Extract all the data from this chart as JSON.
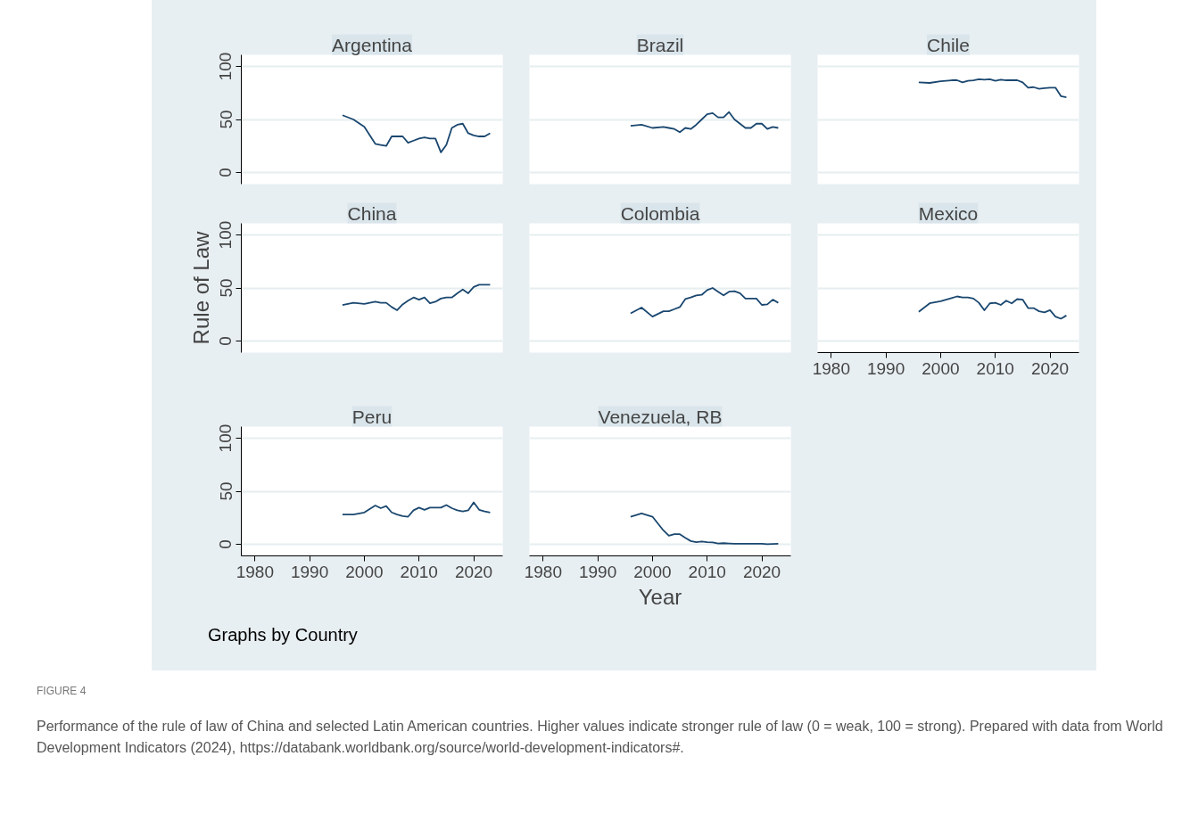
{
  "chart_data": [
    {
      "type": "line",
      "title": "Argentina",
      "x": [
        1996,
        1998,
        2000,
        2002,
        2003,
        2004,
        2005,
        2006,
        2007,
        2008,
        2009,
        2010,
        2011,
        2012,
        2013,
        2014,
        2015,
        2016,
        2017,
        2018,
        2019,
        2020,
        2021,
        2022,
        2023
      ],
      "series": [
        {
          "color": "#1a476f",
          "values": [
            54,
            50,
            43,
            27,
            26,
            25,
            34,
            34,
            34,
            28,
            30,
            32,
            33,
            32,
            32,
            19,
            26,
            42,
            45,
            46,
            37,
            35,
            34,
            34,
            37
          ]
        }
      ],
      "xlim": [
        1977.5,
        2025.3
      ],
      "ylim": [
        -11,
        111
      ],
      "xticks": [
        1980,
        1990,
        2000,
        2010,
        2020
      ],
      "yticks": [
        0,
        50,
        100
      ],
      "grid": "y",
      "tick_labels": "y"
    },
    {
      "type": "line",
      "title": "Brazil",
      "x": [
        1996,
        1998,
        2000,
        2002,
        2003,
        2004,
        2005,
        2006,
        2007,
        2008,
        2009,
        2010,
        2011,
        2012,
        2013,
        2014,
        2015,
        2016,
        2017,
        2018,
        2019,
        2020,
        2021,
        2022,
        2023
      ],
      "series": [
        {
          "color": "#1a476f",
          "values": [
            44,
            45,
            42,
            43,
            42,
            41,
            38,
            42,
            41,
            45,
            50,
            55,
            56,
            52,
            52,
            57,
            50,
            46,
            42,
            42,
            46,
            46,
            41,
            43,
            42
          ]
        }
      ],
      "xlim": [
        1977.5,
        2025.3
      ],
      "ylim": [
        -11,
        111
      ],
      "xticks": [
        1980,
        1990,
        2000,
        2010,
        2020
      ],
      "yticks": [
        0,
        50,
        100
      ],
      "grid": "y",
      "tick_labels": false
    },
    {
      "type": "line",
      "title": "Chile",
      "x": [
        1996,
        1998,
        2000,
        2002,
        2003,
        2004,
        2005,
        2006,
        2007,
        2008,
        2009,
        2010,
        2011,
        2012,
        2013,
        2014,
        2015,
        2016,
        2017,
        2018,
        2019,
        2020,
        2021,
        2022,
        2023
      ],
      "series": [
        {
          "color": "#1a476f",
          "values": [
            85,
            84.5,
            86,
            87,
            87,
            85,
            86.5,
            87,
            88,
            87.5,
            88,
            86.5,
            87.5,
            87,
            87,
            87,
            85,
            80,
            80.5,
            79,
            79.5,
            80,
            80,
            72,
            71
          ]
        }
      ],
      "xlim": [
        1977.5,
        2025.3
      ],
      "ylim": [
        -11,
        111
      ],
      "xticks": [
        1980,
        1990,
        2000,
        2010,
        2020
      ],
      "yticks": [
        0,
        50,
        100
      ],
      "grid": "y",
      "tick_labels": false
    },
    {
      "type": "line",
      "title": "China",
      "ylabel": "Rule of Law",
      "x": [
        1996,
        1998,
        2000,
        2002,
        2003,
        2004,
        2005,
        2006,
        2007,
        2008,
        2009,
        2010,
        2011,
        2012,
        2013,
        2014,
        2015,
        2016,
        2017,
        2018,
        2019,
        2020,
        2021,
        2022,
        2023
      ],
      "series": [
        {
          "color": "#1a476f",
          "values": [
            34,
            36,
            35,
            37,
            36,
            36,
            32,
            29,
            34.5,
            38,
            41,
            39,
            41,
            35.5,
            37,
            40,
            41,
            41,
            45,
            48.5,
            45,
            51,
            53,
            53,
            53
          ]
        }
      ],
      "xlim": [
        1977.5,
        2025.3
      ],
      "ylim": [
        -11,
        111
      ],
      "xticks": [
        1980,
        1990,
        2000,
        2010,
        2020
      ],
      "yticks": [
        0,
        50,
        100
      ],
      "grid": "y",
      "tick_labels": "y"
    },
    {
      "type": "line",
      "title": "Colombia",
      "x": [
        1996,
        1998,
        2000,
        2002,
        2003,
        2004,
        2005,
        2006,
        2007,
        2008,
        2009,
        2010,
        2011,
        2012,
        2013,
        2014,
        2015,
        2016,
        2017,
        2018,
        2019,
        2020,
        2021,
        2022,
        2023
      ],
      "series": [
        {
          "color": "#1a476f",
          "values": [
            26,
            31.5,
            23,
            28,
            28,
            30,
            32,
            39.5,
            41,
            43,
            43.5,
            48,
            50,
            46.5,
            43,
            46.5,
            47,
            45,
            40,
            40,
            40,
            34,
            34.5,
            39,
            36
          ]
        }
      ],
      "xlim": [
        1977.5,
        2025.3
      ],
      "ylim": [
        -11,
        111
      ],
      "xticks": [
        1980,
        1990,
        2000,
        2010,
        2020
      ],
      "yticks": [
        0,
        50,
        100
      ],
      "grid": "y",
      "tick_labels": false
    },
    {
      "type": "line",
      "title": "Mexico",
      "x": [
        1996,
        1998,
        2000,
        2002,
        2003,
        2004,
        2005,
        2006,
        2007,
        2008,
        2009,
        2010,
        2011,
        2012,
        2013,
        2014,
        2015,
        2016,
        2017,
        2018,
        2019,
        2020,
        2021,
        2022,
        2023
      ],
      "series": [
        {
          "color": "#1a476f",
          "values": [
            27.5,
            35.5,
            37.5,
            40.5,
            42,
            41,
            41,
            40,
            36,
            29,
            35.5,
            36,
            34,
            38,
            35.5,
            39.5,
            39,
            31,
            31,
            28,
            27,
            29,
            23,
            21,
            24
          ]
        }
      ],
      "xlim": [
        1977.5,
        2025.3
      ],
      "ylim": [
        -11,
        111
      ],
      "xticks": [
        1980,
        1990,
        2000,
        2010,
        2020
      ],
      "yticks": [
        0,
        50,
        100
      ],
      "grid": "y",
      "tick_labels": "x"
    },
    {
      "type": "line",
      "title": "Peru",
      "x": [
        1996,
        1998,
        2000,
        2002,
        2003,
        2004,
        2005,
        2006,
        2007,
        2008,
        2009,
        2010,
        2011,
        2012,
        2013,
        2014,
        2015,
        2016,
        2017,
        2018,
        2019,
        2020,
        2021,
        2022,
        2023
      ],
      "series": [
        {
          "color": "#1a476f",
          "values": [
            28,
            28,
            30,
            36.5,
            34,
            36,
            30,
            28,
            26.5,
            26,
            32,
            34.5,
            32.5,
            34.5,
            34.5,
            34.5,
            37,
            34,
            32,
            31,
            32,
            39.5,
            32.5,
            31,
            30
          ]
        }
      ],
      "xlim": [
        1977.5,
        2025.3
      ],
      "ylim": [
        -11,
        111
      ],
      "xticks": [
        1980,
        1990,
        2000,
        2010,
        2020
      ],
      "yticks": [
        0,
        50,
        100
      ],
      "grid": "y"
    },
    {
      "type": "line",
      "title": "Venezuela, RB",
      "xlabel": "Year",
      "x": [
        1996,
        1998,
        2000,
        2002,
        2003,
        2004,
        2005,
        2006,
        2007,
        2008,
        2009,
        2010,
        2011,
        2012,
        2013,
        2014,
        2015,
        2016,
        2017,
        2018,
        2019,
        2020,
        2021,
        2022,
        2023
      ],
      "series": [
        {
          "color": "#1a476f",
          "values": [
            26,
            29,
            26,
            13,
            8,
            9.5,
            9.5,
            6,
            3,
            2,
            2.5,
            2,
            1.8,
            0.7,
            1,
            0.7,
            0.5,
            0.5,
            0.5,
            0.5,
            0.5,
            0.5,
            0,
            0.3,
            0.5
          ]
        }
      ],
      "xlim": [
        1977.5,
        2025.3
      ],
      "ylim": [
        -11,
        111
      ],
      "xticks": [
        1980,
        1990,
        2000,
        2010,
        2020
      ],
      "yticks": [
        0,
        50,
        100
      ],
      "grid": "y",
      "tick_labels": "x",
      "annotations": [
        "Graphs by Country",
        "FIGURE 4",
        "Performance of the rule of law of China and selected Latin American countries. Higher values indicate stronger rule of law (0 = weak, 100 = strong). Prepared with data from World Development Indicators (2024), https://databank.worldbank.org/source/world-development-indicators#."
      ]
    }
  ]
}
